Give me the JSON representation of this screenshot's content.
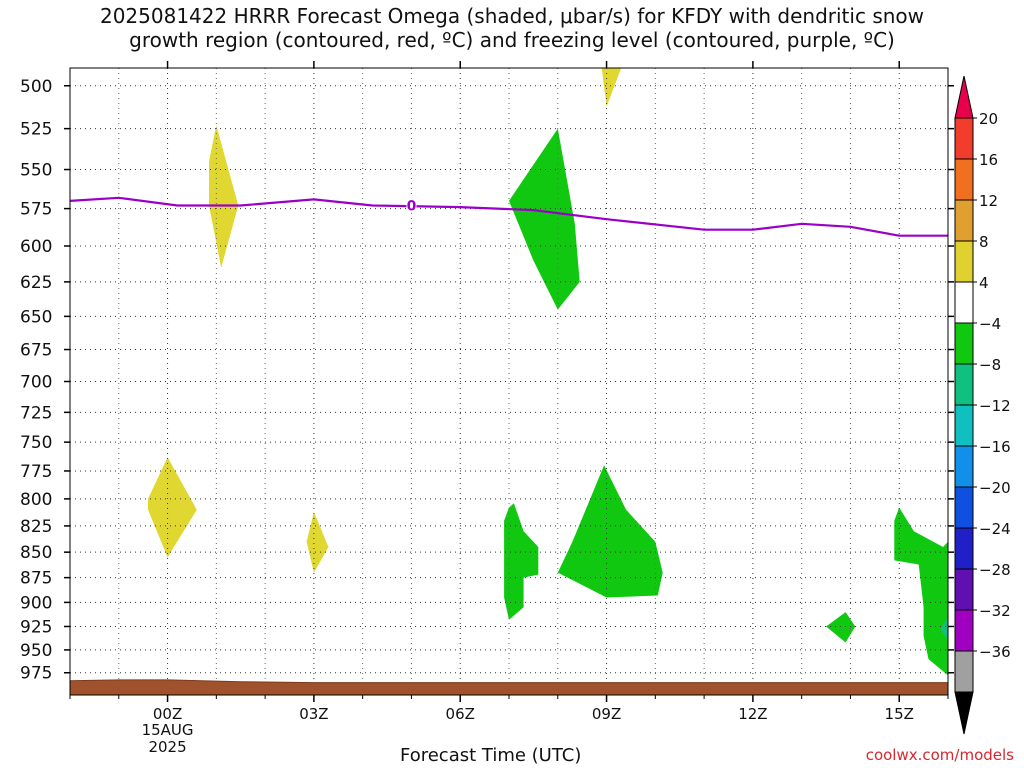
{
  "title_line1": "2025081422 HRRR Forecast Omega (shaded, μbar/s) for KFDY with dendritic snow",
  "title_line2": "growth region (contoured, red, ºC) and freezing level (contoured, purple, ºC)",
  "watermark": "coolwx.com/models",
  "chart_data": {
    "type": "heatmap",
    "xlabel": "Forecast Time (UTC)",
    "x_ticks": [
      {
        "hour": 0,
        "label": "00Z",
        "sub": [
          "15AUG",
          "2025"
        ]
      },
      {
        "hour": 3,
        "label": "03Z",
        "sub": []
      },
      {
        "hour": 6,
        "label": "06Z",
        "sub": []
      },
      {
        "hour": 9,
        "label": "09Z",
        "sub": []
      },
      {
        "hour": 12,
        "label": "12Z",
        "sub": []
      },
      {
        "hour": 15,
        "label": "15Z",
        "sub": []
      }
    ],
    "xlim": [
      -2,
      16
    ],
    "y_ticks": [
      500,
      525,
      550,
      575,
      600,
      625,
      650,
      675,
      700,
      725,
      750,
      775,
      800,
      825,
      850,
      875,
      900,
      925,
      950,
      975
    ],
    "ylim": [
      490,
      1000
    ],
    "y_scale": "log",
    "grid": true,
    "colorbar": {
      "levels": [
        "20",
        "16",
        "12",
        "8",
        "4",
        "−4",
        "−8",
        "−12",
        "−16",
        "−20",
        "−24",
        "−28",
        "−32",
        "−36"
      ],
      "colors": [
        "#e8004c",
        "#f23c2c",
        "#f07020",
        "#e0a030",
        "#e0d030",
        "#ffffff",
        "#10c810",
        "#10c080",
        "#10c0c0",
        "#1090e8",
        "#1050e0",
        "#2020c8",
        "#6010b0",
        "#a000c0",
        "#a0a0a0",
        "#000000"
      ]
    },
    "freezing_level": {
      "label": "0",
      "label_at": [
        5.0,
        573
      ],
      "color": "#9b00c8",
      "points": [
        [
          -2,
          570
        ],
        [
          -1.0,
          568
        ],
        [
          0.2,
          573
        ],
        [
          1.5,
          573
        ],
        [
          3.0,
          569
        ],
        [
          4.2,
          573
        ],
        [
          6.0,
          574
        ],
        [
          7.5,
          576
        ],
        [
          9.0,
          582
        ],
        [
          11.0,
          589
        ],
        [
          12.0,
          589
        ],
        [
          13.0,
          585
        ],
        [
          14.0,
          587
        ],
        [
          15.0,
          593
        ],
        [
          16,
          593
        ]
      ]
    },
    "shaded_regions": [
      {
        "value": 6,
        "color": "#e0d830",
        "points": [
          [
            1.0,
            523
          ],
          [
            1.45,
            573
          ],
          [
            1.1,
            615
          ],
          [
            0.85,
            573
          ],
          [
            0.85,
            545
          ]
        ]
      },
      {
        "value": 6,
        "color": "#e0d830",
        "points": [
          [
            8.9,
            490
          ],
          [
            9.3,
            490
          ],
          [
            9.0,
            512
          ]
        ]
      },
      {
        "value": 6,
        "color": "#e0d830",
        "points": [
          [
            0.0,
            763
          ],
          [
            0.6,
            810
          ],
          [
            0.0,
            855
          ],
          [
            -0.4,
            810
          ],
          [
            -0.4,
            800
          ]
        ]
      },
      {
        "value": 6,
        "color": "#e0d830",
        "points": [
          [
            3.0,
            812
          ],
          [
            3.3,
            845
          ],
          [
            3.0,
            870
          ],
          [
            2.85,
            840
          ]
        ]
      },
      {
        "value": -6,
        "color": "#10c810",
        "points": [
          [
            8.0,
            525
          ],
          [
            8.35,
            585
          ],
          [
            8.45,
            625
          ],
          [
            8.0,
            645
          ],
          [
            7.5,
            610
          ],
          [
            7.0,
            570
          ]
        ]
      },
      {
        "value": -6,
        "color": "#10c810",
        "points": [
          [
            7.1,
            804
          ],
          [
            7.3,
            830
          ],
          [
            7.6,
            845
          ],
          [
            7.6,
            872
          ],
          [
            7.3,
            875
          ],
          [
            7.3,
            905
          ],
          [
            7.0,
            918
          ],
          [
            6.9,
            895
          ],
          [
            6.9,
            820
          ],
          [
            7.0,
            808
          ]
        ]
      },
      {
        "value": -6,
        "color": "#10c810",
        "points": [
          [
            8.95,
            770
          ],
          [
            9.4,
            810
          ],
          [
            10.0,
            840
          ],
          [
            10.15,
            870
          ],
          [
            10.05,
            893
          ],
          [
            9.0,
            895
          ],
          [
            8.0,
            870
          ],
          [
            8.3,
            840
          ]
        ]
      },
      {
        "value": -6,
        "color": "#10c810",
        "points": [
          [
            15.0,
            808
          ],
          [
            15.3,
            830
          ],
          [
            15.9,
            845
          ],
          [
            16,
            840
          ],
          [
            16,
            978
          ],
          [
            15.6,
            960
          ],
          [
            15.5,
            935
          ],
          [
            15.5,
            905
          ],
          [
            15.4,
            862
          ],
          [
            14.9,
            858
          ],
          [
            14.9,
            820
          ]
        ]
      },
      {
        "value": -6,
        "color": "#10c810",
        "points": [
          [
            13.9,
            910
          ],
          [
            14.1,
            925
          ],
          [
            13.9,
            942
          ],
          [
            13.5,
            925
          ]
        ]
      },
      {
        "value": -10,
        "color": "#10c080",
        "points": [
          [
            16,
            915
          ],
          [
            16,
            940
          ],
          [
            15.85,
            928
          ]
        ]
      }
    ],
    "terrain": {
      "color": "#a0522d",
      "points": [
        [
          -2,
          984
        ],
        [
          -1.0,
          983
        ],
        [
          0,
          983
        ],
        [
          1.5,
          985
        ],
        [
          3.0,
          986
        ],
        [
          6.0,
          986
        ],
        [
          9.0,
          986
        ],
        [
          11.0,
          986
        ],
        [
          12.0,
          986
        ],
        [
          16,
          986
        ]
      ]
    }
  }
}
